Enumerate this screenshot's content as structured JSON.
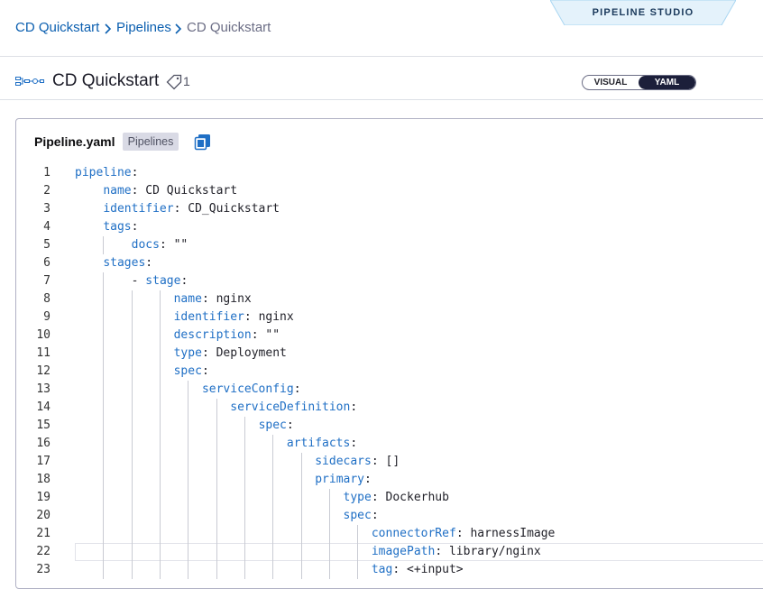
{
  "breadcrumb": [
    "CD Quickstart",
    "Pipelines",
    "CD Quickstart"
  ],
  "studio_label": "PIPELINE STUDIO",
  "header": {
    "title": "CD Quickstart",
    "tag_count": "1"
  },
  "view_toggle": [
    "VISUAL",
    "YAML"
  ],
  "editor": {
    "file_name": "Pipeline.yaml",
    "badge": "Pipelines",
    "separator": ":",
    "lines": [
      {
        "number": 1,
        "indent": 0,
        "key": "pipeline"
      },
      {
        "number": 2,
        "indent": 4,
        "key": "name",
        "value": "CD Quickstart"
      },
      {
        "number": 3,
        "indent": 4,
        "key": "identifier",
        "value": "CD_Quickstart"
      },
      {
        "number": 4,
        "indent": 4,
        "key": "tags"
      },
      {
        "number": 5,
        "indent": 8,
        "key": "docs",
        "value": "\"\""
      },
      {
        "number": 6,
        "indent": 4,
        "key": "stages"
      },
      {
        "number": 7,
        "indent": 8,
        "item": "-",
        "key": "stage"
      },
      {
        "number": 8,
        "indent": 14,
        "key": "name",
        "value": "nginx"
      },
      {
        "number": 9,
        "indent": 14,
        "key": "identifier",
        "value": "nginx"
      },
      {
        "number": 10,
        "indent": 14,
        "key": "description",
        "value": "\"\""
      },
      {
        "number": 11,
        "indent": 14,
        "key": "type",
        "value": "Deployment"
      },
      {
        "number": 12,
        "indent": 14,
        "key": "spec"
      },
      {
        "number": 13,
        "indent": 18,
        "key": "serviceConfig"
      },
      {
        "number": 14,
        "indent": 22,
        "key": "serviceDefinition"
      },
      {
        "number": 15,
        "indent": 26,
        "key": "spec"
      },
      {
        "number": 16,
        "indent": 30,
        "key": "artifacts"
      },
      {
        "number": 17,
        "indent": 34,
        "key": "sidecars",
        "value": "[]"
      },
      {
        "number": 18,
        "indent": 34,
        "key": "primary"
      },
      {
        "number": 19,
        "indent": 38,
        "key": "type",
        "value": "Dockerhub"
      },
      {
        "number": 20,
        "indent": 38,
        "key": "spec"
      },
      {
        "number": 21,
        "indent": 42,
        "key": "connectorRef",
        "value": "harnessImage"
      },
      {
        "number": 22,
        "indent": 42,
        "key": "imagePath",
        "value": "library/nginx"
      },
      {
        "number": 23,
        "indent": 42,
        "key": "tag",
        "value": "<+input>"
      }
    ]
  }
}
